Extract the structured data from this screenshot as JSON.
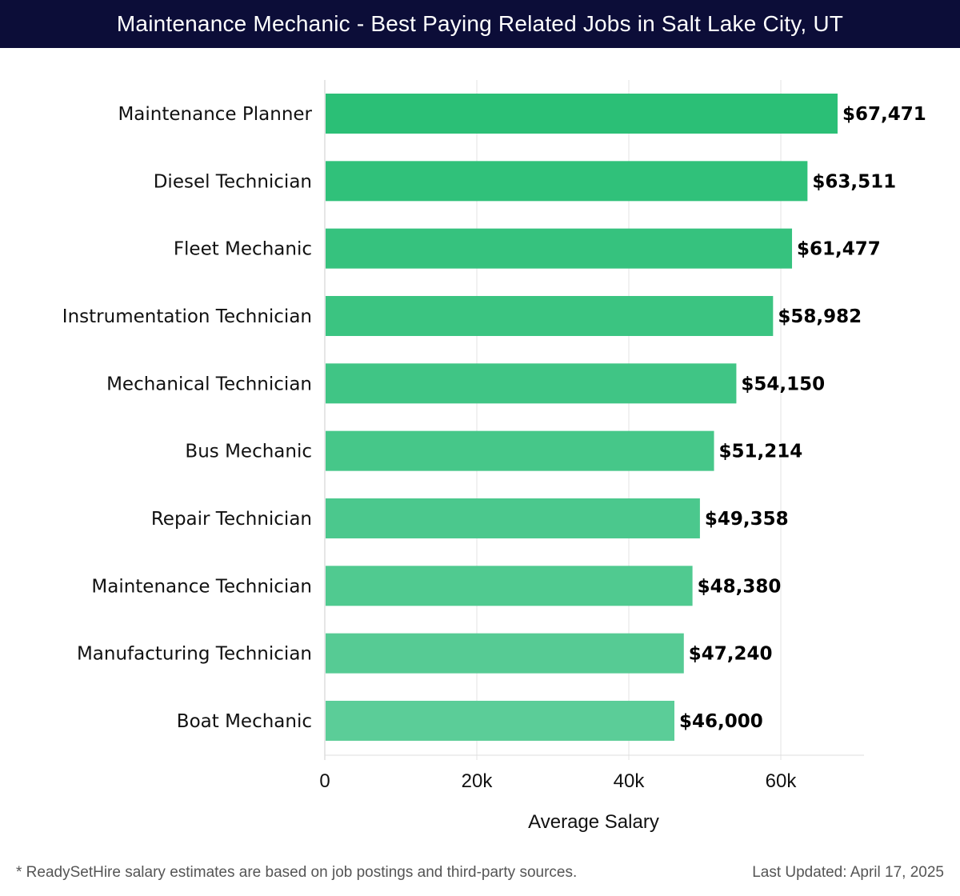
{
  "header": {
    "title": "Maintenance Mechanic - Best Paying Related Jobs in Salt Lake City, UT"
  },
  "chart_data": {
    "type": "bar",
    "orientation": "horizontal",
    "categories": [
      "Maintenance Planner",
      "Diesel Technician",
      "Fleet Mechanic",
      "Instrumentation Technician",
      "Mechanical Technician",
      "Bus Mechanic",
      "Repair Technician",
      "Maintenance Technician",
      "Manufacturing Technician",
      "Boat Mechanic"
    ],
    "values": [
      67471,
      63511,
      61477,
      58982,
      54150,
      51214,
      49358,
      48380,
      47240,
      46000
    ],
    "value_labels": [
      "$67,471",
      "$63,511",
      "$61,477",
      "$58,982",
      "$54,150",
      "$51,214",
      "$49,358",
      "$48,380",
      "$47,240",
      "$46,000"
    ],
    "xlabel": "Average Salary",
    "xlim": [
      0,
      71000
    ],
    "xticks": [
      0,
      20000,
      40000,
      60000
    ],
    "xtick_labels": [
      "0",
      "20k",
      "40k",
      "60k"
    ],
    "grid": true,
    "colors": {
      "bar_top": "#2bbf76",
      "bar_bottom": "#5bcd98"
    }
  },
  "footer": {
    "note": "* ReadySetHire salary estimates are based on job postings and third-party sources.",
    "updated": "Last Updated: April 17, 2025"
  }
}
